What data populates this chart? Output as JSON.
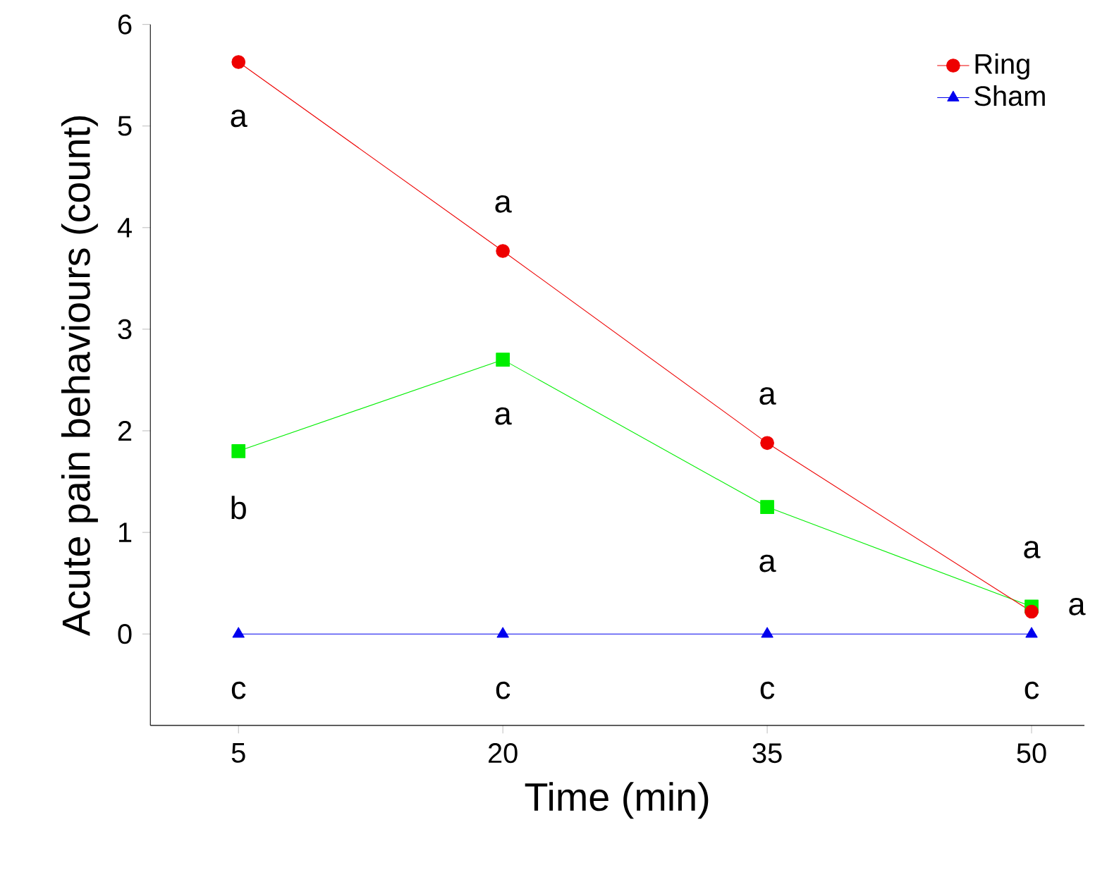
{
  "chart_data": {
    "type": "line",
    "xlabel": "Time (min)",
    "ylabel": "Acute pain behaviours (count)",
    "x": [
      5,
      20,
      35,
      50
    ],
    "xlim": [
      0,
      53
    ],
    "xticks": [
      5,
      20,
      35,
      50
    ],
    "ylim": [
      -0.9,
      6
    ],
    "yticks": [
      0,
      1,
      2,
      3,
      4,
      5,
      6
    ],
    "series": [
      {
        "color": "#00ee00",
        "marker": "square",
        "values": [
          1.8,
          2.7,
          1.25,
          0.27
        ]
      },
      {
        "name": "Ring",
        "color": "#ee0000",
        "marker": "circle",
        "values": [
          5.63,
          3.77,
          1.88,
          0.22
        ]
      },
      {
        "name": "Sham",
        "color": "#0000ee",
        "marker": "triangle",
        "values": [
          0,
          0,
          0,
          0
        ]
      }
    ],
    "legend": "top right",
    "grid": false,
    "annotations": [
      "b",
      "a",
      "c",
      "a",
      "a",
      "c",
      "a",
      "a",
      "c",
      "a",
      "a",
      "c"
    ]
  }
}
